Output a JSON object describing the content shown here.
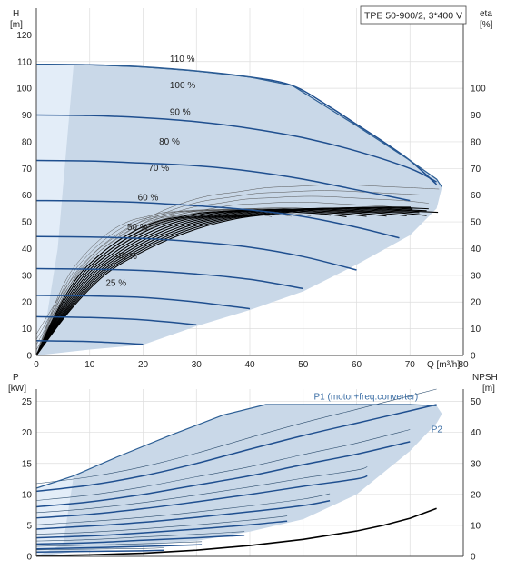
{
  "colors": {
    "envelope_fill": "#c9d8e8",
    "envelope_edge": "#2d5f95",
    "light_zone": "#e3edf8",
    "curve": "#1f4f8f",
    "eff_curve": "#000000",
    "grid": "#dddddd",
    "axis": "#444444"
  },
  "chart_data": [
    {
      "type": "line",
      "name": "head",
      "title": "TPE 50-900/2, 3*400 V",
      "xlabel": "Q [m³/h]",
      "ylabel_left": [
        "H",
        "[m]"
      ],
      "ylabel_right": [
        "eta",
        "[%]"
      ],
      "xlim": [
        0,
        80
      ],
      "ylim": [
        0,
        130
      ],
      "x_ticks": [
        0,
        10,
        20,
        30,
        40,
        50,
        60,
        70,
        80
      ],
      "y_ticks": [
        0,
        10,
        20,
        30,
        40,
        50,
        60,
        70,
        80,
        90,
        100,
        110,
        120
      ],
      "right_ticks": [
        0,
        10,
        20,
        30,
        40,
        50,
        60,
        70,
        80,
        90,
        100
      ],
      "right_lim": [
        0,
        130
      ],
      "envelope": [
        [
          0,
          0
        ],
        [
          0,
          109
        ],
        [
          10,
          108.8
        ],
        [
          20,
          108
        ],
        [
          30,
          106.5
        ],
        [
          40,
          104.2
        ],
        [
          48,
          101
        ],
        [
          60,
          86
        ],
        [
          70,
          73
        ],
        [
          75,
          66
        ],
        [
          76,
          63
        ],
        [
          75,
          55
        ],
        [
          70,
          45
        ],
        [
          60,
          34
        ],
        [
          50,
          24
        ],
        [
          40,
          17
        ],
        [
          30,
          11
        ],
        [
          20,
          4
        ],
        [
          10,
          2.2
        ],
        [
          0,
          0
        ]
      ],
      "light_zone": [
        [
          0,
          0
        ],
        [
          0,
          109
        ],
        [
          7,
          109
        ],
        [
          4,
          40
        ],
        [
          2,
          15
        ],
        [
          0,
          0
        ]
      ],
      "speed_curves": [
        {
          "label": "110 %",
          "label_at": [
            25,
            110
          ],
          "points": [
            [
              0,
              109
            ],
            [
              10,
              108.8
            ],
            [
              20,
              108
            ],
            [
              30,
              106.5
            ],
            [
              40,
              104.2
            ],
            [
              48,
              101
            ],
            [
              55,
              93
            ],
            [
              60,
              86.5
            ],
            [
              65,
              80
            ],
            [
              70,
              73
            ],
            [
              75,
              64
            ]
          ]
        },
        {
          "label": "100 %",
          "label_at": [
            25,
            100
          ],
          "points": [
            [
              0,
              90
            ],
            [
              10,
              89.8
            ],
            [
              20,
              89
            ],
            [
              30,
              87.5
            ],
            [
              40,
              85
            ],
            [
              50,
              81.5
            ],
            [
              60,
              76.5
            ],
            [
              70,
              70
            ],
            [
              75,
              65
            ]
          ]
        },
        {
          "label": "90 %",
          "label_at": [
            25,
            90
          ],
          "points": [
            [
              0,
              73
            ],
            [
              10,
              72.8
            ],
            [
              20,
              72
            ],
            [
              30,
              71
            ],
            [
              40,
              69
            ],
            [
              50,
              66
            ],
            [
              60,
              62
            ],
            [
              70,
              58
            ]
          ]
        },
        {
          "label": "80 %",
          "label_at": [
            23,
            79
          ],
          "points": [
            [
              0,
              58
            ],
            [
              10,
              57.8
            ],
            [
              20,
              57.2
            ],
            [
              30,
              56
            ],
            [
              40,
              54.5
            ],
            [
              50,
              52
            ],
            [
              60,
              48
            ],
            [
              68,
              44
            ]
          ]
        },
        {
          "label": "70 %",
          "label_at": [
            21,
            69
          ],
          "points": [
            [
              0,
              44.5
            ],
            [
              10,
              44.3
            ],
            [
              20,
              43.8
            ],
            [
              30,
              42.5
            ],
            [
              40,
              40.5
            ],
            [
              50,
              37
            ],
            [
              60,
              32
            ]
          ]
        },
        {
          "label": "60 %",
          "label_at": [
            19,
            58
          ],
          "points": [
            [
              0,
              32.5
            ],
            [
              10,
              32.3
            ],
            [
              20,
              31.8
            ],
            [
              30,
              30.5
            ],
            [
              40,
              28.5
            ],
            [
              50,
              25
            ]
          ]
        },
        {
          "label": "50 %",
          "label_at": [
            17,
            47
          ],
          "points": [
            [
              0,
              22.5
            ],
            [
              10,
              22.3
            ],
            [
              20,
              21.7
            ],
            [
              30,
              20
            ],
            [
              40,
              17.5
            ]
          ]
        },
        {
          "label": "40 %",
          "label_at": [
            15,
            36
          ],
          "points": [
            [
              0,
              14.5
            ],
            [
              10,
              14.2
            ],
            [
              20,
              13.3
            ],
            [
              30,
              11.5
            ]
          ]
        },
        {
          "label": "25 %",
          "label_at": [
            13,
            26
          ],
          "points": [
            [
              0,
              5.5
            ],
            [
              10,
              5.2
            ],
            [
              20,
              4.2
            ]
          ]
        }
      ],
      "efficiency_scale": [
        6,
        6.5,
        7,
        7.5,
        8,
        8.5,
        9,
        9.5,
        10,
        10.5,
        11
      ],
      "efficiency_base": [
        [
          0,
          0
        ],
        [
          5,
          17
        ],
        [
          10,
          30
        ],
        [
          15,
          38
        ],
        [
          20,
          44
        ],
        [
          25,
          48.5
        ],
        [
          30,
          51.5
        ],
        [
          35,
          53
        ],
        [
          40,
          54.5
        ],
        [
          45,
          55
        ],
        [
          50,
          55.5
        ],
        [
          55,
          55.5
        ],
        [
          60,
          55
        ],
        [
          65,
          54.5
        ],
        [
          70,
          54
        ],
        [
          75,
          53
        ]
      ]
    },
    {
      "type": "line",
      "name": "power",
      "xlim": [
        0,
        80
      ],
      "ylabel_left": [
        "P",
        "[kW]"
      ],
      "ylabel_right": [
        "NPSH",
        "[m]"
      ],
      "ylim": [
        0,
        27
      ],
      "y_ticks": [
        0,
        5,
        10,
        15,
        20,
        25
      ],
      "right_ticks": [
        0,
        10,
        20,
        30,
        40,
        50
      ],
      "right_lim": [
        0,
        54
      ],
      "envelope": [
        [
          0,
          0
        ],
        [
          0,
          11
        ],
        [
          7,
          13
        ],
        [
          15,
          16
        ],
        [
          25,
          19.5
        ],
        [
          35,
          22.8
        ],
        [
          43,
          24.5
        ],
        [
          50,
          24.5
        ],
        [
          60,
          24.5
        ],
        [
          70,
          24.5
        ],
        [
          75,
          24.3
        ],
        [
          76,
          23
        ],
        [
          75,
          21.5
        ],
        [
          70,
          17
        ],
        [
          60,
          10
        ],
        [
          50,
          6
        ],
        [
          40,
          4
        ],
        [
          30,
          2.5
        ],
        [
          20,
          1.8
        ],
        [
          10,
          1
        ],
        [
          0,
          0
        ]
      ],
      "light_zone": [
        [
          0,
          0
        ],
        [
          0,
          11
        ],
        [
          7,
          13
        ],
        [
          5,
          2
        ],
        [
          0,
          0
        ]
      ],
      "p1_label": "P1 (motor+freq.converter)",
      "p1_label_at": [
        52,
        25.3
      ],
      "p2_label": "P2",
      "p2_label_at": [
        74,
        20
      ],
      "power_curves": [
        {
          "points": [
            [
              0,
              10.5
            ],
            [
              10,
              11.5
            ],
            [
              20,
              13
            ],
            [
              30,
              15
            ],
            [
              40,
              17.3
            ],
            [
              50,
              19.5
            ],
            [
              60,
              21.5
            ],
            [
              70,
              23.5
            ],
            [
              75,
              24.5
            ]
          ]
        },
        {
          "points": [
            [
              0,
              8
            ],
            [
              10,
              8.8
            ],
            [
              20,
              10
            ],
            [
              30,
              11.5
            ],
            [
              40,
              13
            ],
            [
              50,
              14.8
            ],
            [
              60,
              16.5
            ],
            [
              70,
              18.5
            ]
          ]
        },
        {
          "points": [
            [
              0,
              6.2
            ],
            [
              10,
              6.8
            ],
            [
              20,
              7.7
            ],
            [
              30,
              8.8
            ],
            [
              40,
              10
            ],
            [
              50,
              11.3
            ],
            [
              60,
              12.5
            ],
            [
              62,
              13
            ]
          ]
        },
        {
          "points": [
            [
              0,
              4.4
            ],
            [
              10,
              4.9
            ],
            [
              20,
              5.5
            ],
            [
              30,
              6.3
            ],
            [
              40,
              7.2
            ],
            [
              50,
              8.2
            ],
            [
              55,
              9
            ]
          ]
        },
        {
          "points": [
            [
              0,
              3
            ],
            [
              10,
              3.3
            ],
            [
              20,
              3.8
            ],
            [
              30,
              4.4
            ],
            [
              40,
              5.1
            ],
            [
              47,
              5.7
            ]
          ]
        },
        {
          "points": [
            [
              0,
              2
            ],
            [
              10,
              2.2
            ],
            [
              20,
              2.6
            ],
            [
              30,
              3
            ],
            [
              39,
              3.4
            ]
          ]
        },
        {
          "points": [
            [
              0,
              1.2
            ],
            [
              10,
              1.4
            ],
            [
              20,
              1.6
            ],
            [
              31,
              1.9
            ]
          ]
        },
        {
          "points": [
            [
              0,
              0.7
            ],
            [
              10,
              0.8
            ],
            [
              20,
              0.9
            ],
            [
              24,
              1
            ]
          ]
        }
      ],
      "npsh_curve": {
        "points": [
          [
            0,
            0.2
          ],
          [
            10,
            0.5
          ],
          [
            20,
            1.0
          ],
          [
            30,
            2.0
          ],
          [
            40,
            3.5
          ],
          [
            50,
            5.5
          ],
          [
            60,
            8.2
          ],
          [
            65,
            10
          ],
          [
            70,
            12.3
          ],
          [
            75,
            15.5
          ]
        ]
      }
    }
  ]
}
